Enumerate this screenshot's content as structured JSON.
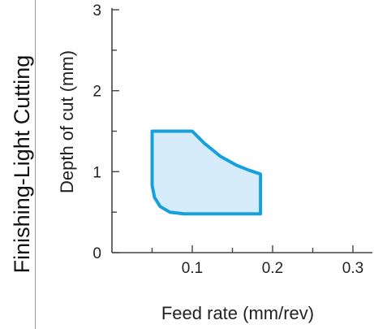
{
  "side_title": "Finishing-Light Cutting",
  "chart_data": {
    "type": "area",
    "xlabel": "Feed rate (mm/rev)",
    "ylabel": "Depth of cut (mm)",
    "xlim": [
      0,
      0.3
    ],
    "ylim": [
      0,
      3
    ],
    "x_ticks": [
      "0.1",
      "0.2",
      "0.3"
    ],
    "y_ticks": [
      "0",
      "1",
      "2",
      "3"
    ],
    "grid": false,
    "region": {
      "fill": "#d6ecfa",
      "stroke": "#17a0de",
      "boundary": [
        {
          "x": 0.05,
          "y": 1.5
        },
        {
          "x": 0.1,
          "y": 1.5
        },
        {
          "x": 0.115,
          "y": 1.35
        },
        {
          "x": 0.135,
          "y": 1.19
        },
        {
          "x": 0.155,
          "y": 1.08
        },
        {
          "x": 0.17,
          "y": 1.02
        },
        {
          "x": 0.185,
          "y": 0.97
        },
        {
          "x": 0.185,
          "y": 0.48
        },
        {
          "x": 0.09,
          "y": 0.48
        },
        {
          "x": 0.072,
          "y": 0.5
        },
        {
          "x": 0.06,
          "y": 0.57
        },
        {
          "x": 0.053,
          "y": 0.68
        },
        {
          "x": 0.05,
          "y": 0.83
        }
      ]
    }
  }
}
